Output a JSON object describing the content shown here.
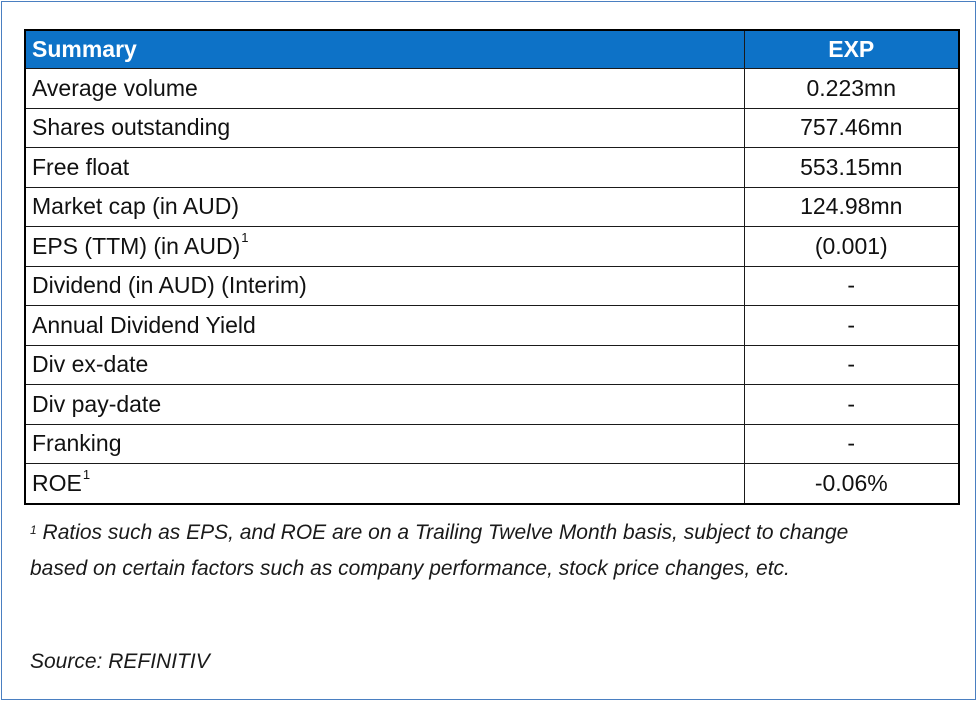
{
  "table": {
    "header": {
      "label": "Summary",
      "value": "EXP"
    },
    "rows": [
      {
        "label": "Average volume",
        "sup": "",
        "value": "0.223mn"
      },
      {
        "label": "Shares outstanding",
        "sup": "",
        "value": "757.46mn"
      },
      {
        "label": "Free float",
        "sup": "",
        "value": "553.15mn"
      },
      {
        "label": "Market cap (in AUD)",
        "sup": "",
        "value": "124.98mn"
      },
      {
        "label": "EPS (TTM) (in AUD)",
        "sup": "1",
        "value": "(0.001)"
      },
      {
        "label": "Dividend (in AUD) (Interim)",
        "sup": "",
        "value": "-"
      },
      {
        "label": "Annual Dividend Yield",
        "sup": "",
        "value": "-"
      },
      {
        "label": "Div ex-date",
        "sup": "",
        "value": "-"
      },
      {
        "label": "Div pay-date",
        "sup": "",
        "value": "-"
      },
      {
        "label": "Franking",
        "sup": "",
        "value": "-"
      },
      {
        "label": "ROE",
        "sup": "1",
        "value": "-0.06%"
      }
    ],
    "header_color": "#0d72c7",
    "frame_color": "#4a7fc1"
  },
  "footnote": {
    "marker": "1",
    "line1": "Ratios such as EPS, and ROE are on a Trailing Twelve Month basis, subject to change",
    "line2": "based on certain factors such as company performance, stock price changes, etc."
  },
  "source": "Source: REFINITIV"
}
